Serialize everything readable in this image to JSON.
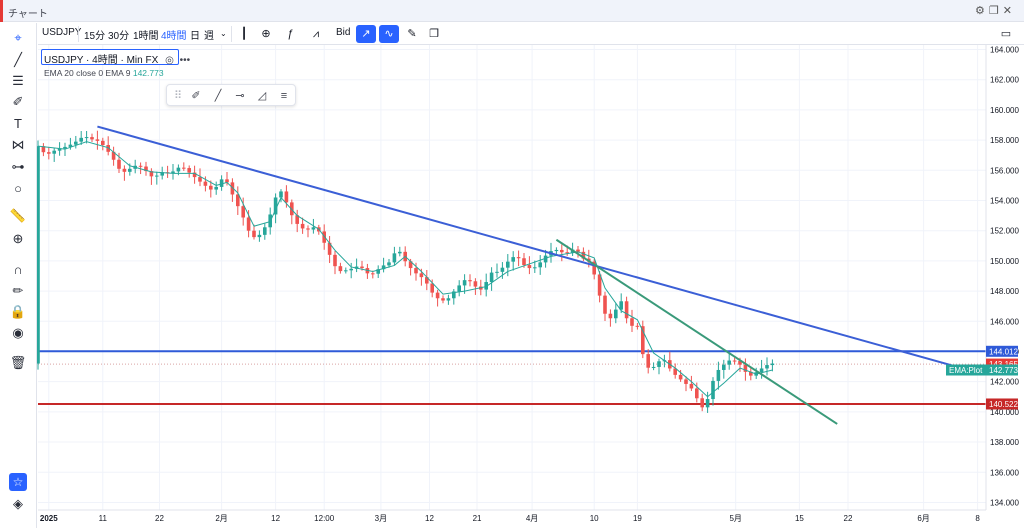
{
  "window": {
    "title": "チャート"
  },
  "toolbar": {
    "symbol": "USDJPY",
    "intervals": [
      "15分",
      "30分",
      "1時間",
      "4時間",
      "日",
      "週"
    ],
    "active_interval": "4時間",
    "price_source": "Bid"
  },
  "legend": {
    "title": "USDJPY · 4時間 · Min FX",
    "ema_label": "EMA 20 close 0 EMA 9",
    "ema_value": "142.773"
  },
  "colors": {
    "up": "#26a69a",
    "down": "#ef5350",
    "trendline_blue": "#3b5fd6",
    "trendline_green": "#3a9a7a",
    "support": "#c62828",
    "resistance": "#2f5ad8",
    "ema": "#26a69a"
  },
  "chart_data": {
    "type": "candlestick",
    "symbol": "USDJPY",
    "interval": "4時間",
    "ylim": [
      133.5,
      164.3
    ],
    "y_ticks": [
      "164.000",
      "162.000",
      "160.000",
      "158.000",
      "156.000",
      "154.000",
      "152.000",
      "150.000",
      "148.000",
      "146.000",
      "144.000",
      "142.000",
      "140.000",
      "138.000",
      "136.000",
      "134.000"
    ],
    "x_ticks": [
      "2025",
      "11",
      "22",
      "2月",
      "12",
      "12:00",
      "3月",
      "12",
      "21",
      "4月",
      "10",
      "19",
      "5月",
      "15",
      "22",
      "6月",
      "8"
    ],
    "price_path": [
      [
        0,
        157.8
      ],
      [
        2,
        157.0
      ],
      [
        4,
        157.4
      ],
      [
        6,
        157.6
      ],
      [
        8,
        158.0
      ],
      [
        9,
        158.3
      ],
      [
        10,
        158.1
      ],
      [
        12,
        157.9
      ],
      [
        14,
        157.0
      ],
      [
        16,
        155.8
      ],
      [
        18,
        156.2
      ],
      [
        19,
        156.4
      ],
      [
        21,
        155.8
      ],
      [
        22,
        155.4
      ],
      [
        23,
        155.9
      ],
      [
        25,
        155.8
      ],
      [
        27,
        156.3
      ],
      [
        29,
        155.7
      ],
      [
        31,
        155.1
      ],
      [
        33,
        154.6
      ],
      [
        34,
        155.2
      ],
      [
        35,
        155.6
      ],
      [
        37,
        154.0
      ],
      [
        39,
        152.5
      ],
      [
        40,
        151.5
      ],
      [
        42,
        151.8
      ],
      [
        44,
        153.5
      ],
      [
        45,
        154.9
      ],
      [
        46,
        154.3
      ],
      [
        48,
        152.6
      ],
      [
        50,
        152.0
      ],
      [
        52,
        152.3
      ],
      [
        53,
        151.6
      ],
      [
        55,
        150.0
      ],
      [
        56,
        149.3
      ],
      [
        58,
        149.4
      ],
      [
        60,
        149.7
      ],
      [
        62,
        149.0
      ],
      [
        64,
        149.6
      ],
      [
        66,
        150.0
      ],
      [
        67,
        151.0
      ],
      [
        68,
        150.2
      ],
      [
        70,
        149.3
      ],
      [
        72,
        148.8
      ],
      [
        74,
        147.6
      ],
      [
        76,
        147.3
      ],
      [
        78,
        148.2
      ],
      [
        80,
        148.9
      ],
      [
        81,
        148.4
      ],
      [
        83,
        148.0
      ],
      [
        84,
        149.2
      ],
      [
        86,
        149.3
      ],
      [
        87,
        149.8
      ],
      [
        89,
        150.4
      ],
      [
        91,
        149.5
      ],
      [
        93,
        149.6
      ],
      [
        94,
        150.2
      ],
      [
        96,
        150.8
      ],
      [
        98,
        150.5
      ],
      [
        99,
        150.6
      ],
      [
        100,
        150.9
      ],
      [
        101,
        150.3
      ],
      [
        102,
        150.0
      ],
      [
        103,
        149.9
      ],
      [
        104,
        148.3
      ],
      [
        106,
        145.9
      ],
      [
        107,
        146.5
      ],
      [
        109,
        147.6
      ],
      [
        110,
        144.8
      ],
      [
        111,
        146.6
      ],
      [
        113,
        142.9
      ],
      [
        115,
        143.0
      ],
      [
        116,
        143.7
      ],
      [
        118,
        142.6
      ],
      [
        120,
        142.0
      ],
      [
        122,
        141.4
      ],
      [
        123,
        140.4
      ],
      [
        124,
        140.2
      ],
      [
        125,
        141.5
      ],
      [
        126,
        142.6
      ],
      [
        128,
        143.3
      ],
      [
        129,
        143.5
      ],
      [
        131,
        143.0
      ],
      [
        132,
        142.3
      ],
      [
        133,
        142.5
      ],
      [
        135,
        143.0
      ],
      [
        136,
        143.2
      ]
    ],
    "ema_path": [
      [
        0,
        157.6
      ],
      [
        5,
        157.4
      ],
      [
        9,
        157.9
      ],
      [
        13,
        157.5
      ],
      [
        17,
        156.3
      ],
      [
        21,
        155.9
      ],
      [
        25,
        155.8
      ],
      [
        29,
        155.8
      ],
      [
        33,
        155.0
      ],
      [
        35,
        155.2
      ],
      [
        37,
        154.5
      ],
      [
        40,
        152.3
      ],
      [
        43,
        152.6
      ],
      [
        45,
        154.2
      ],
      [
        48,
        153.0
      ],
      [
        52,
        152.1
      ],
      [
        55,
        150.7
      ],
      [
        58,
        149.6
      ],
      [
        62,
        149.3
      ],
      [
        66,
        149.7
      ],
      [
        68,
        150.3
      ],
      [
        71,
        149.3
      ],
      [
        75,
        147.8
      ],
      [
        79,
        148.0
      ],
      [
        83,
        148.3
      ],
      [
        87,
        149.3
      ],
      [
        91,
        149.8
      ],
      [
        95,
        150.3
      ],
      [
        100,
        150.6
      ],
      [
        103,
        150.2
      ],
      [
        105,
        148.2
      ],
      [
        108,
        146.7
      ],
      [
        111,
        146.1
      ],
      [
        114,
        143.9
      ],
      [
        118,
        142.9
      ],
      [
        121,
        142.0
      ],
      [
        124,
        141.0
      ],
      [
        127,
        141.9
      ],
      [
        130,
        142.9
      ],
      [
        133,
        142.5
      ],
      [
        136,
        142.77
      ]
    ],
    "trendlines": [
      {
        "name": "blue_trendline",
        "from": [
          11,
          158.9
        ],
        "to": [
          172,
          142.8
        ]
      },
      {
        "name": "green_trendline",
        "from": [
          96,
          151.4
        ],
        "to": [
          148,
          139.2
        ]
      }
    ],
    "horizontal_lines": [
      {
        "name": "resistance",
        "price": 144.012,
        "label": "144.012"
      },
      {
        "name": "support",
        "price": 140.522,
        "label": "140.522"
      },
      {
        "name": "current_price",
        "price": 143.165,
        "label": "143.165"
      }
    ],
    "ema_tag": {
      "label": "EMA:Plot",
      "value": "142.773"
    }
  }
}
